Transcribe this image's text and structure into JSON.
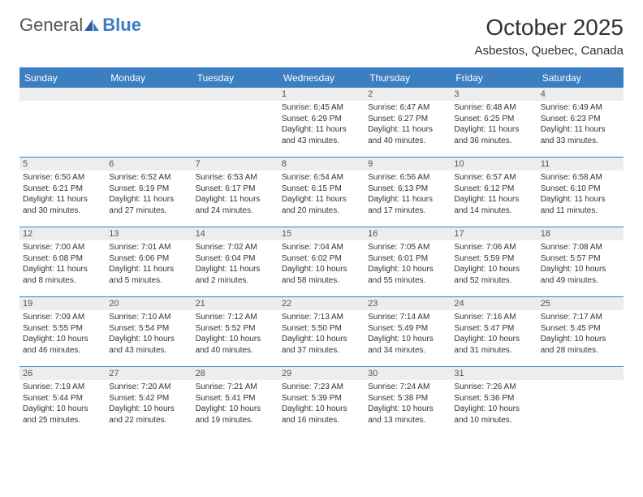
{
  "logo": {
    "text1": "General",
    "text2": "Blue"
  },
  "title": "October 2025",
  "location": "Asbestos, Quebec, Canada",
  "colors": {
    "header_bg": "#3b7ec1",
    "header_text": "#ffffff",
    "daynum_bg": "#ededed",
    "border": "#3b7ec1",
    "text": "#333333"
  },
  "weekdays": [
    "Sunday",
    "Monday",
    "Tuesday",
    "Wednesday",
    "Thursday",
    "Friday",
    "Saturday"
  ],
  "weeks": [
    [
      {
        "num": "",
        "sunrise": "",
        "sunset": "",
        "daylight": ""
      },
      {
        "num": "",
        "sunrise": "",
        "sunset": "",
        "daylight": ""
      },
      {
        "num": "",
        "sunrise": "",
        "sunset": "",
        "daylight": ""
      },
      {
        "num": "1",
        "sunrise": "Sunrise: 6:45 AM",
        "sunset": "Sunset: 6:29 PM",
        "daylight": "Daylight: 11 hours and 43 minutes."
      },
      {
        "num": "2",
        "sunrise": "Sunrise: 6:47 AM",
        "sunset": "Sunset: 6:27 PM",
        "daylight": "Daylight: 11 hours and 40 minutes."
      },
      {
        "num": "3",
        "sunrise": "Sunrise: 6:48 AM",
        "sunset": "Sunset: 6:25 PM",
        "daylight": "Daylight: 11 hours and 36 minutes."
      },
      {
        "num": "4",
        "sunrise": "Sunrise: 6:49 AM",
        "sunset": "Sunset: 6:23 PM",
        "daylight": "Daylight: 11 hours and 33 minutes."
      }
    ],
    [
      {
        "num": "5",
        "sunrise": "Sunrise: 6:50 AM",
        "sunset": "Sunset: 6:21 PM",
        "daylight": "Daylight: 11 hours and 30 minutes."
      },
      {
        "num": "6",
        "sunrise": "Sunrise: 6:52 AM",
        "sunset": "Sunset: 6:19 PM",
        "daylight": "Daylight: 11 hours and 27 minutes."
      },
      {
        "num": "7",
        "sunrise": "Sunrise: 6:53 AM",
        "sunset": "Sunset: 6:17 PM",
        "daylight": "Daylight: 11 hours and 24 minutes."
      },
      {
        "num": "8",
        "sunrise": "Sunrise: 6:54 AM",
        "sunset": "Sunset: 6:15 PM",
        "daylight": "Daylight: 11 hours and 20 minutes."
      },
      {
        "num": "9",
        "sunrise": "Sunrise: 6:56 AM",
        "sunset": "Sunset: 6:13 PM",
        "daylight": "Daylight: 11 hours and 17 minutes."
      },
      {
        "num": "10",
        "sunrise": "Sunrise: 6:57 AM",
        "sunset": "Sunset: 6:12 PM",
        "daylight": "Daylight: 11 hours and 14 minutes."
      },
      {
        "num": "11",
        "sunrise": "Sunrise: 6:58 AM",
        "sunset": "Sunset: 6:10 PM",
        "daylight": "Daylight: 11 hours and 11 minutes."
      }
    ],
    [
      {
        "num": "12",
        "sunrise": "Sunrise: 7:00 AM",
        "sunset": "Sunset: 6:08 PM",
        "daylight": "Daylight: 11 hours and 8 minutes."
      },
      {
        "num": "13",
        "sunrise": "Sunrise: 7:01 AM",
        "sunset": "Sunset: 6:06 PM",
        "daylight": "Daylight: 11 hours and 5 minutes."
      },
      {
        "num": "14",
        "sunrise": "Sunrise: 7:02 AM",
        "sunset": "Sunset: 6:04 PM",
        "daylight": "Daylight: 11 hours and 2 minutes."
      },
      {
        "num": "15",
        "sunrise": "Sunrise: 7:04 AM",
        "sunset": "Sunset: 6:02 PM",
        "daylight": "Daylight: 10 hours and 58 minutes."
      },
      {
        "num": "16",
        "sunrise": "Sunrise: 7:05 AM",
        "sunset": "Sunset: 6:01 PM",
        "daylight": "Daylight: 10 hours and 55 minutes."
      },
      {
        "num": "17",
        "sunrise": "Sunrise: 7:06 AM",
        "sunset": "Sunset: 5:59 PM",
        "daylight": "Daylight: 10 hours and 52 minutes."
      },
      {
        "num": "18",
        "sunrise": "Sunrise: 7:08 AM",
        "sunset": "Sunset: 5:57 PM",
        "daylight": "Daylight: 10 hours and 49 minutes."
      }
    ],
    [
      {
        "num": "19",
        "sunrise": "Sunrise: 7:09 AM",
        "sunset": "Sunset: 5:55 PM",
        "daylight": "Daylight: 10 hours and 46 minutes."
      },
      {
        "num": "20",
        "sunrise": "Sunrise: 7:10 AM",
        "sunset": "Sunset: 5:54 PM",
        "daylight": "Daylight: 10 hours and 43 minutes."
      },
      {
        "num": "21",
        "sunrise": "Sunrise: 7:12 AM",
        "sunset": "Sunset: 5:52 PM",
        "daylight": "Daylight: 10 hours and 40 minutes."
      },
      {
        "num": "22",
        "sunrise": "Sunrise: 7:13 AM",
        "sunset": "Sunset: 5:50 PM",
        "daylight": "Daylight: 10 hours and 37 minutes."
      },
      {
        "num": "23",
        "sunrise": "Sunrise: 7:14 AM",
        "sunset": "Sunset: 5:49 PM",
        "daylight": "Daylight: 10 hours and 34 minutes."
      },
      {
        "num": "24",
        "sunrise": "Sunrise: 7:16 AM",
        "sunset": "Sunset: 5:47 PM",
        "daylight": "Daylight: 10 hours and 31 minutes."
      },
      {
        "num": "25",
        "sunrise": "Sunrise: 7:17 AM",
        "sunset": "Sunset: 5:45 PM",
        "daylight": "Daylight: 10 hours and 28 minutes."
      }
    ],
    [
      {
        "num": "26",
        "sunrise": "Sunrise: 7:19 AM",
        "sunset": "Sunset: 5:44 PM",
        "daylight": "Daylight: 10 hours and 25 minutes."
      },
      {
        "num": "27",
        "sunrise": "Sunrise: 7:20 AM",
        "sunset": "Sunset: 5:42 PM",
        "daylight": "Daylight: 10 hours and 22 minutes."
      },
      {
        "num": "28",
        "sunrise": "Sunrise: 7:21 AM",
        "sunset": "Sunset: 5:41 PM",
        "daylight": "Daylight: 10 hours and 19 minutes."
      },
      {
        "num": "29",
        "sunrise": "Sunrise: 7:23 AM",
        "sunset": "Sunset: 5:39 PM",
        "daylight": "Daylight: 10 hours and 16 minutes."
      },
      {
        "num": "30",
        "sunrise": "Sunrise: 7:24 AM",
        "sunset": "Sunset: 5:38 PM",
        "daylight": "Daylight: 10 hours and 13 minutes."
      },
      {
        "num": "31",
        "sunrise": "Sunrise: 7:26 AM",
        "sunset": "Sunset: 5:36 PM",
        "daylight": "Daylight: 10 hours and 10 minutes."
      },
      {
        "num": "",
        "sunrise": "",
        "sunset": "",
        "daylight": ""
      }
    ]
  ]
}
